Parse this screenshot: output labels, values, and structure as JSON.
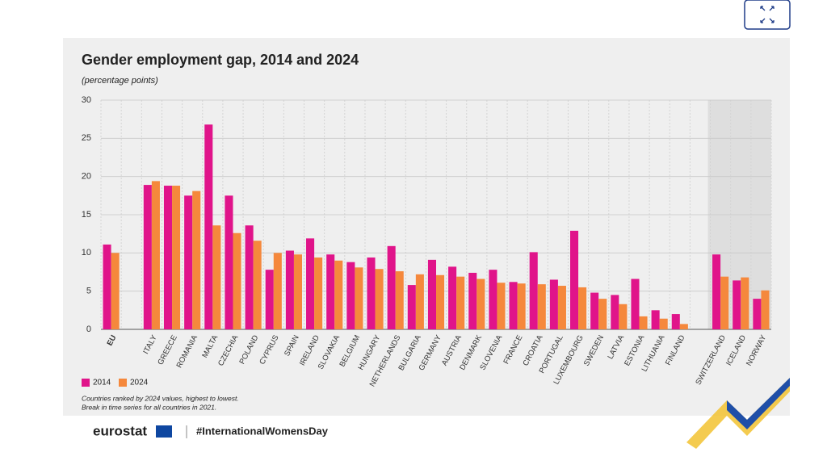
{
  "chart_data": {
    "type": "bar",
    "title": "Gender employment gap, 2014 and 2024",
    "subtitle": "(percentage points)",
    "categories": [
      "EU",
      null,
      "ITALY",
      "GREECE",
      "ROMANIA",
      "MALTA",
      "CZECHIA",
      "POLAND",
      "CYPRUS",
      "SPAIN",
      "IRELAND",
      "SLOVAKIA",
      "BELGIUM",
      "HUNGARY",
      "NETHERLANDS",
      "BULGARIA",
      "GERMANY",
      "AUSTRIA",
      "DENMARK",
      "SLOVENIA",
      "FRANCE",
      "CROATIA",
      "PORTUGAL",
      "LUXEMBOURG",
      "SWEDEN",
      "LATVIA",
      "ESTONIA",
      "LITHUANIA",
      "FINLAND",
      null,
      "SWITZERLAND",
      "ICELAND",
      "NORWAY"
    ],
    "series": [
      {
        "name": "2014",
        "color": "#e0148a",
        "values": [
          11.1,
          null,
          18.9,
          18.8,
          17.5,
          26.8,
          17.5,
          13.6,
          7.8,
          10.3,
          11.9,
          9.8,
          8.8,
          9.4,
          10.9,
          5.8,
          9.1,
          8.2,
          7.4,
          7.8,
          6.2,
          10.1,
          6.5,
          12.9,
          4.8,
          4.5,
          6.6,
          2.5,
          2.0,
          null,
          9.8,
          6.4,
          4.0
        ]
      },
      {
        "name": "2024",
        "color": "#f5883c",
        "values": [
          10.0,
          null,
          19.4,
          18.8,
          18.1,
          13.6,
          12.6,
          11.6,
          10.0,
          9.8,
          9.4,
          9.0,
          8.1,
          7.9,
          7.6,
          7.2,
          7.1,
          6.9,
          6.6,
          6.1,
          6.0,
          5.9,
          5.7,
          5.5,
          4.0,
          3.3,
          1.7,
          1.4,
          0.7,
          null,
          6.9,
          6.8,
          5.1
        ]
      }
    ],
    "ylim": [
      0,
      30
    ],
    "yticks": [
      0,
      5,
      10,
      15,
      20,
      25,
      30
    ],
    "grid": true,
    "legend": "bottom-left",
    "notes": [
      "Countries ranked by 2024 values, highest to lowest.",
      "Break in time series for all countries in 2021."
    ]
  },
  "footer": {
    "brand": "eurostat",
    "hashtag": "#InternationalWomensDay"
  }
}
